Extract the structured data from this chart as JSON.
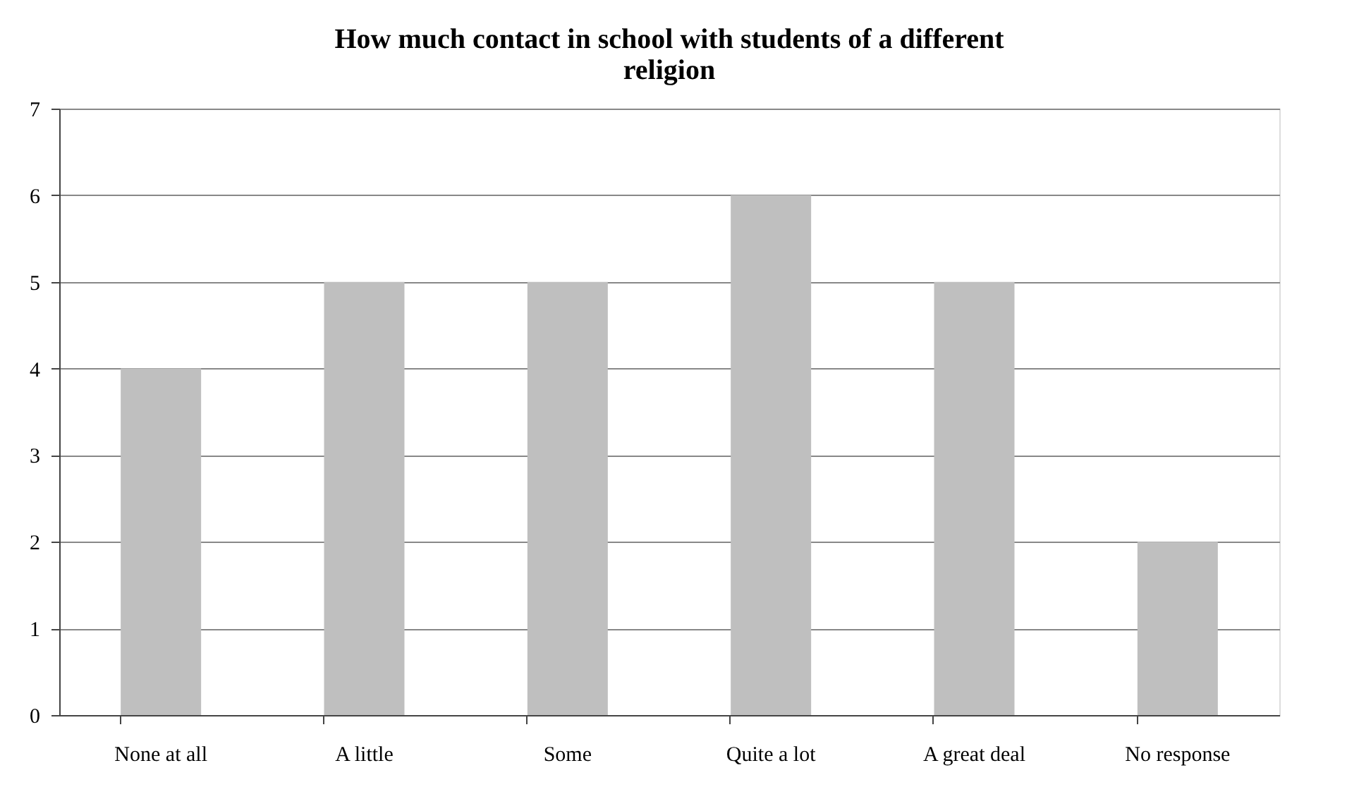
{
  "chart_data": {
    "type": "bar",
    "title": "How much contact in school with students of a different religion",
    "categories": [
      "None at all",
      "A little",
      "Some",
      "Quite a lot",
      "A great deal",
      "No response"
    ],
    "values": [
      4,
      5,
      5,
      6,
      5,
      2
    ],
    "color": "#bfbfbf",
    "ylim": [
      0,
      7
    ],
    "yticks": [
      0,
      1,
      2,
      3,
      4,
      5,
      6,
      7
    ],
    "grid": "y"
  }
}
